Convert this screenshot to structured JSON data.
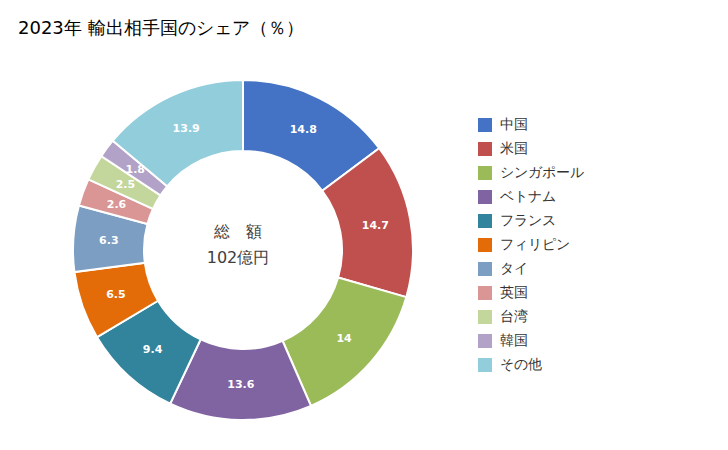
{
  "chart_data": {
    "type": "pie",
    "title": "2023年 輸出相手国のシェア（％）",
    "annotations": [
      "総　額",
      "102億円"
    ],
    "categories": [
      "中国",
      "米国",
      "シンガポール",
      "ベトナム",
      "フランス",
      "フィリピン",
      "タイ",
      "英国",
      "台湾",
      "韓国",
      "その他"
    ],
    "values": [
      14.8,
      14.7,
      14.0,
      13.6,
      9.4,
      6.5,
      6.3,
      2.6,
      2.5,
      1.8,
      13.9
    ],
    "colors": [
      "#4472C4",
      "#C0504D",
      "#9BBB59",
      "#8064A2",
      "#31849B",
      "#E36C09",
      "#7B9EC2",
      "#D99694",
      "#C3D69B",
      "#B2A2C7",
      "#92CDDC"
    ],
    "data_labels": true,
    "legend": "right"
  }
}
